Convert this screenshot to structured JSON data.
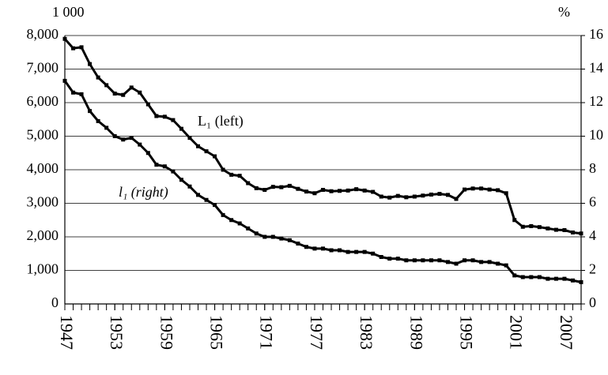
{
  "chart_data": {
    "type": "line",
    "left_unit": "1 000",
    "right_unit": "%",
    "x": [
      1947,
      1948,
      1949,
      1950,
      1951,
      1952,
      1953,
      1954,
      1955,
      1956,
      1957,
      1958,
      1959,
      1960,
      1961,
      1962,
      1963,
      1964,
      1965,
      1966,
      1967,
      1968,
      1969,
      1970,
      1971,
      1972,
      1973,
      1974,
      1975,
      1976,
      1977,
      1978,
      1979,
      1980,
      1981,
      1982,
      1983,
      1984,
      1985,
      1986,
      1987,
      1988,
      1989,
      1990,
      1991,
      1992,
      1993,
      1994,
      1995,
      1996,
      1997,
      1998,
      1999,
      2000,
      2001,
      2002,
      2003,
      2004,
      2005,
      2006,
      2007,
      2008,
      2009
    ],
    "series": [
      {
        "name": "L₁ (left)",
        "color": "#000000",
        "values": [
          7900,
          7620,
          7650,
          7150,
          6750,
          6520,
          6270,
          6230,
          6450,
          6300,
          5950,
          5600,
          5580,
          5480,
          5220,
          4950,
          4700,
          4550,
          4400,
          4000,
          3850,
          3820,
          3600,
          3450,
          3400,
          3490,
          3480,
          3520,
          3430,
          3350,
          3300,
          3400,
          3360,
          3370,
          3380,
          3420,
          3380,
          3340,
          3200,
          3170,
          3220,
          3180,
          3200,
          3230,
          3260,
          3280,
          3250,
          3130,
          3410,
          3440,
          3440,
          3410,
          3390,
          3300,
          2500,
          2300,
          2320,
          2290,
          2250,
          2210,
          2200,
          2130,
          2100
        ]
      },
      {
        "name": "l₁ (right)",
        "color": "#000000",
        "axis": "y2",
        "values": [
          13.3,
          12.6,
          12.5,
          11.5,
          10.9,
          10.5,
          10.0,
          9.8,
          9.9,
          9.5,
          9.0,
          8.3,
          8.2,
          7.9,
          7.4,
          7.0,
          6.5,
          6.2,
          5.9,
          5.3,
          5.0,
          4.8,
          4.5,
          4.2,
          4.0,
          4.0,
          3.9,
          3.8,
          3.6,
          3.4,
          3.3,
          3.3,
          3.2,
          3.2,
          3.1,
          3.1,
          3.1,
          3.0,
          2.8,
          2.7,
          2.7,
          2.6,
          2.6,
          2.6,
          2.6,
          2.6,
          2.5,
          2.4,
          2.6,
          2.6,
          2.5,
          2.5,
          2.4,
          2.3,
          1.7,
          1.6,
          1.6,
          1.6,
          1.5,
          1.5,
          1.5,
          1.4,
          1.3
        ]
      }
    ],
    "xlim": [
      1947,
      2009
    ],
    "xticks": [
      1947,
      1953,
      1959,
      1965,
      1971,
      1977,
      1983,
      1989,
      1995,
      2001,
      2007
    ],
    "ylim": [
      0,
      8000
    ],
    "yticks": [
      0,
      {
        "value": 1000,
        "label": "1,000"
      },
      {
        "value": 2000,
        "label": "2,000"
      },
      {
        "value": 3000,
        "label": "3,000"
      },
      {
        "value": 4000,
        "label": "4,000"
      },
      {
        "value": 5000,
        "label": "5,000"
      },
      {
        "value": 6000,
        "label": "6,000"
      },
      {
        "value": 7000,
        "label": "7,000"
      },
      {
        "value": 8000,
        "label": "8,000"
      }
    ],
    "y2lim": [
      0,
      16
    ],
    "y2ticks": [
      0,
      2,
      4,
      6,
      8,
      10,
      12,
      14,
      16
    ],
    "grid": true
  }
}
